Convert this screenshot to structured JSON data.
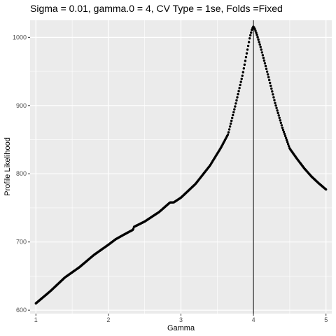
{
  "chart_data": {
    "type": "scatter",
    "title": "Sigma = 0.01, gamma.0 = 4, CV Type = 1se, Folds =Fixed",
    "xlabel": "Gamma",
    "ylabel": "Profile Likelihood",
    "xlim": [
      0.92,
      5.08
    ],
    "ylim": [
      595,
      1025
    ],
    "x_ticks": [
      1,
      2,
      3,
      4,
      5
    ],
    "x_tick_labels": [
      "1",
      "2",
      "3",
      "4",
      "5"
    ],
    "x_minor_ticks": [
      1.5,
      2.5,
      3.5,
      4.5
    ],
    "y_ticks": [
      600,
      700,
      800,
      900,
      1000
    ],
    "y_tick_labels": [
      "600",
      "700",
      "800",
      "900",
      "1000"
    ],
    "y_minor_ticks": [
      650,
      750,
      850,
      950
    ],
    "vline_x": 4,
    "grid": true,
    "panel_background": "#ebebeb",
    "grid_color": "#ffffff",
    "point_color": "#000000",
    "curve_knots": [
      [
        1.0,
        610
      ],
      [
        1.2,
        628
      ],
      [
        1.4,
        648
      ],
      [
        1.6,
        663
      ],
      [
        1.8,
        681
      ],
      [
        2.0,
        696
      ],
      [
        2.1,
        704
      ],
      [
        2.2,
        710
      ],
      [
        2.34,
        718
      ],
      [
        2.35,
        722
      ],
      [
        2.5,
        730
      ],
      [
        2.7,
        744
      ],
      [
        2.85,
        758
      ],
      [
        2.9,
        758
      ],
      [
        3.0,
        765
      ],
      [
        3.2,
        785
      ],
      [
        3.4,
        812
      ],
      [
        3.55,
        838
      ],
      [
        3.65,
        858
      ],
      [
        3.75,
        900
      ],
      [
        3.85,
        945
      ],
      [
        3.95,
        1000
      ],
      [
        3.98,
        1012
      ],
      [
        4.0,
        1016
      ],
      [
        4.02,
        1012
      ],
      [
        4.05,
        1003
      ],
      [
        4.1,
        985
      ],
      [
        4.2,
        945
      ],
      [
        4.3,
        903
      ],
      [
        4.4,
        867
      ],
      [
        4.5,
        837
      ],
      [
        4.6,
        822
      ],
      [
        4.7,
        808
      ],
      [
        4.8,
        796
      ],
      [
        4.9,
        786
      ],
      [
        5.0,
        777
      ]
    ],
    "n_points": 400
  }
}
